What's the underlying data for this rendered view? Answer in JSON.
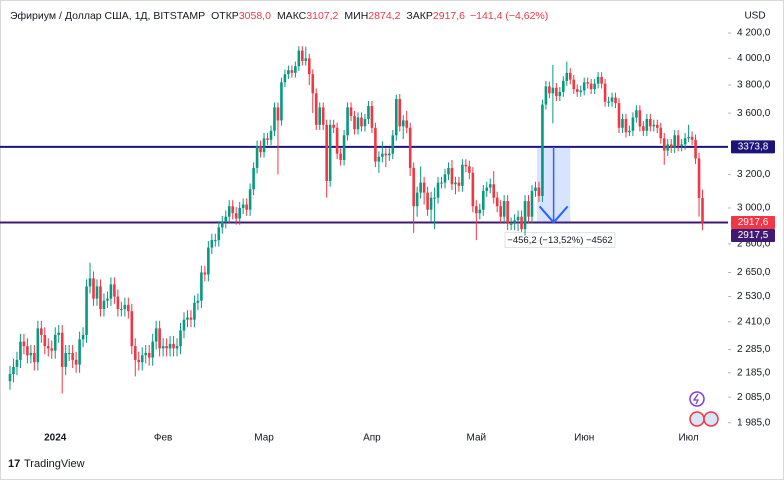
{
  "chart_data": {
    "type": "candlestick",
    "title": "Эфириум / Доллар США, 1Д, BITSTAMP",
    "header_fields": [
      {
        "label": "ОТКР",
        "value": "3058,0"
      },
      {
        "label": "МАКС",
        "value": "3107,2"
      },
      {
        "label": "МИН",
        "value": "2874,2"
      },
      {
        "label": "ЗАКР",
        "value": "2917,6"
      }
    ],
    "change": "−141,4 (−4,62%)",
    "currency": "USD",
    "brand": "TradingView",
    "categories": [
      null,
      null,
      null,
      null,
      null,
      null,
      null,
      null,
      null,
      null,
      null,
      null,
      null,
      "2024",
      null,
      null,
      null,
      null,
      null,
      null,
      null,
      null,
      null,
      null,
      null,
      null,
      null,
      null,
      null,
      null,
      null,
      null,
      null,
      null,
      null,
      null,
      null,
      null,
      null,
      null,
      null,
      null,
      null,
      null,
      "Фев",
      null,
      null,
      null,
      null,
      null,
      null,
      null,
      null,
      null,
      null,
      null,
      null,
      null,
      null,
      null,
      null,
      null,
      null,
      null,
      null,
      null,
      null,
      null,
      null,
      null,
      null,
      null,
      null,
      "Мар",
      null,
      null,
      null,
      null,
      null,
      null,
      null,
      null,
      null,
      null,
      null,
      null,
      null,
      null,
      null,
      null,
      null,
      null,
      null,
      null,
      null,
      null,
      null,
      null,
      null,
      null,
      null,
      null,
      null,
      null,
      "Апр",
      null,
      null,
      null,
      null,
      null,
      null,
      null,
      null,
      null,
      null,
      null,
      null,
      null,
      null,
      null,
      null,
      null,
      null,
      null,
      null,
      null,
      null,
      null,
      null,
      null,
      null,
      null,
      null,
      null,
      "Май",
      null,
      null,
      null,
      null,
      null,
      null,
      null,
      null,
      null,
      null,
      null,
      null,
      null,
      null,
      null,
      null,
      null,
      null,
      null,
      null,
      null,
      null,
      null,
      null,
      null,
      null,
      null,
      null,
      null,
      null,
      "Июн",
      null,
      null,
      null,
      null,
      null,
      null,
      null,
      null,
      null,
      null,
      null,
      null,
      null,
      null,
      null,
      null,
      null,
      null,
      null,
      null,
      null,
      null,
      null,
      null,
      null,
      null,
      null,
      null,
      null,
      "Июл",
      null,
      null,
      null,
      null
    ],
    "open": [
      2150,
      2180,
      2210,
      2240,
      2320,
      2300,
      2260,
      2270,
      2230,
      2380,
      2350,
      2300,
      2290,
      2280,
      2350,
      2360,
      2210,
      2270,
      2270,
      2240,
      2220,
      2330,
      2350,
      2580,
      2620,
      2520,
      2580,
      2470,
      2510,
      2520,
      2590,
      2530,
      2470,
      2470,
      2490,
      2460,
      2300,
      2240,
      2230,
      2260,
      2270,
      2250,
      2320,
      2380,
      2290,
      2300,
      2290,
      2310,
      2290,
      2300,
      2370,
      2420,
      2430,
      2420,
      2500,
      2510,
      2650,
      2640,
      2780,
      2820,
      2820,
      2890,
      2920,
      2950,
      3010,
      2970,
      2940,
      3000,
      3020,
      2990,
      3110,
      3240,
      3380,
      3340,
      3430,
      3420,
      3480,
      3640,
      3550,
      3820,
      3880,
      3910,
      3890,
      3940,
      4060,
      3980,
      4000,
      3880,
      3740,
      3520,
      3640,
      3520,
      3160,
      3520,
      3500,
      3330,
      3290,
      3450,
      3640,
      3580,
      3490,
      3570,
      3510,
      3560,
      3650,
      3500,
      3280,
      3310,
      3330,
      3320,
      3330,
      3450,
      3700,
      3510,
      3550,
      3500,
      3240,
      3010,
      3090,
      3150,
      3090,
      2990,
      3060,
      3060,
      3150,
      3150,
      3200,
      3240,
      3140,
      3150,
      3130,
      3260,
      3250,
      3210,
      3010,
      2970,
      2990,
      3100,
      3120,
      3140,
      3060,
      3010,
      2950,
      3040,
      2910,
      2910,
      2930,
      2950,
      2880,
      3040,
      2950,
      3100,
      3120,
      3070,
      3660,
      3790,
      3740,
      3780,
      3720,
      3750,
      3830,
      3890,
      3840,
      3770,
      3750,
      3760,
      3820,
      3810,
      3770,
      3810,
      3860,
      3810,
      3680,
      3680,
      3710,
      3670,
      3500,
      3560,
      3470,
      3480,
      3570,
      3620,
      3510,
      3480,
      3560,
      3510,
      3520,
      3500,
      3430,
      3350,
      3390,
      3370,
      3450,
      3380,
      3390,
      3430,
      3440,
      3420,
      3300,
      3058
    ],
    "high": [
      2215,
      2245,
      2275,
      2355,
      2355,
      2335,
      2305,
      2305,
      2415,
      2415,
      2385,
      2335,
      2325,
      2385,
      2395,
      2395,
      2305,
      2305,
      2305,
      2275,
      2365,
      2385,
      2615,
      2700,
      2655,
      2615,
      2615,
      2545,
      2555,
      2625,
      2625,
      2565,
      2505,
      2525,
      2525,
      2495,
      2335,
      2275,
      2295,
      2305,
      2305,
      2355,
      2415,
      2415,
      2335,
      2335,
      2345,
      2345,
      2335,
      2405,
      2455,
      2465,
      2465,
      2535,
      2545,
      2685,
      2685,
      2815,
      2855,
      2855,
      2925,
      2955,
      2985,
      3045,
      3045,
      3005,
      3035,
      3055,
      3055,
      3145,
      3275,
      3415,
      3415,
      3465,
      3465,
      3515,
      3675,
      3675,
      3855,
      3915,
      3945,
      3945,
      3975,
      4095,
      4095,
      4090,
      4035,
      3915,
      3775,
      3675,
      3675,
      3555,
      3555,
      3555,
      3535,
      3365,
      3485,
      3675,
      3675,
      3615,
      3605,
      3605,
      3595,
      3685,
      3685,
      3535,
      3345,
      3410,
      3365,
      3365,
      3485,
      3730,
      3735,
      3585,
      3615,
      3535,
      3275,
      3125,
      3250,
      3185,
      3125,
      3095,
      3120,
      3185,
      3185,
      3235,
      3275,
      3290,
      3185,
      3185,
      3295,
      3295,
      3285,
      3245,
      3045,
      3025,
      3135,
      3155,
      3175,
      3220,
      3095,
      3045,
      3075,
      3075,
      2945,
      2965,
      2985,
      2985,
      3075,
      3075,
      3135,
      3155,
      3155,
      3695,
      3830,
      3825,
      3950,
      3815,
      3785,
      3865,
      3975,
      3925,
      3875,
      3805,
      3795,
      3855,
      3855,
      3845,
      3845,
      3895,
      3895,
      3845,
      3715,
      3745,
      3745,
      3705,
      3595,
      3595,
      3515,
      3605,
      3655,
      3655,
      3545,
      3595,
      3595,
      3555,
      3555,
      3535,
      3465,
      3425,
      3425,
      3485,
      3485,
      3425,
      3465,
      3520,
      3475,
      3455,
      3335,
      3107.2
    ],
    "low": [
      2115,
      2145,
      2175,
      2205,
      2265,
      2225,
      2225,
      2195,
      2195,
      2315,
      2265,
      2255,
      2245,
      2245,
      2315,
      2100,
      2175,
      2235,
      2205,
      2185,
      2185,
      2295,
      2315,
      2545,
      2485,
      2485,
      2435,
      2435,
      2475,
      2485,
      2495,
      2435,
      2435,
      2435,
      2425,
      2265,
      2170,
      2195,
      2195,
      2225,
      2215,
      2215,
      2285,
      2255,
      2255,
      2255,
      2255,
      2255,
      2255,
      2265,
      2335,
      2385,
      2385,
      2385,
      2465,
      2475,
      2605,
      2605,
      2745,
      2785,
      2785,
      2855,
      2885,
      2915,
      2935,
      2905,
      2905,
      2965,
      2955,
      2955,
      3075,
      3205,
      3305,
      3305,
      3385,
      3385,
      3445,
      3200,
      3515,
      3785,
      3845,
      3855,
      3855,
      3905,
      3945,
      3945,
      3800,
      3600,
      3485,
      3485,
      3485,
      3060,
      3125,
      3465,
      3295,
      3255,
      3255,
      3415,
      3545,
      3455,
      3455,
      3475,
      3475,
      3525,
      3465,
      3245,
      3210,
      3275,
      3245,
      3285,
      3295,
      3415,
      3475,
      3425,
      3465,
      3190,
      2860,
      2950,
      3055,
      3020,
      2955,
      2920,
      2880,
      3025,
      3115,
      3115,
      3165,
      3105,
      3080,
      3095,
      3095,
      3215,
      3170,
      2975,
      2820,
      2935,
      2955,
      3065,
      3085,
      3025,
      2975,
      2915,
      2915,
      2875,
      2875,
      2875,
      2870,
      2865,
      2845,
      2915,
      2915,
      3065,
      3035,
      3035,
      3625,
      3705,
      3530,
      3685,
      3685,
      3715,
      3795,
      3805,
      3735,
      3715,
      3715,
      3725,
      3775,
      3735,
      3735,
      3775,
      3775,
      3645,
      3645,
      3645,
      3635,
      3465,
      3465,
      3435,
      3445,
      3445,
      3535,
      3475,
      3445,
      3445,
      3475,
      3475,
      3465,
      3395,
      3260,
      3315,
      3335,
      3335,
      3345,
      3345,
      3355,
      3405,
      3385,
      3265,
      2950,
      2874.2
    ],
    "close": [
      2180,
      2210,
      2240,
      2320,
      2300,
      2260,
      2270,
      2230,
      2380,
      2350,
      2300,
      2290,
      2280,
      2350,
      2360,
      2210,
      2270,
      2270,
      2240,
      2220,
      2330,
      2350,
      2580,
      2620,
      2520,
      2580,
      2470,
      2510,
      2520,
      2590,
      2530,
      2470,
      2470,
      2490,
      2460,
      2300,
      2240,
      2230,
      2260,
      2270,
      2250,
      2320,
      2380,
      2290,
      2300,
      2290,
      2310,
      2290,
      2300,
      2370,
      2420,
      2430,
      2420,
      2500,
      2510,
      2650,
      2640,
      2780,
      2820,
      2820,
      2890,
      2920,
      2950,
      3010,
      2970,
      2940,
      3000,
      3020,
      2990,
      3110,
      3240,
      3380,
      3340,
      3430,
      3420,
      3480,
      3640,
      3550,
      3820,
      3880,
      3910,
      3890,
      3940,
      4060,
      3980,
      4000,
      3880,
      3740,
      3520,
      3640,
      3520,
      3160,
      3520,
      3500,
      3330,
      3290,
      3450,
      3640,
      3580,
      3490,
      3570,
      3510,
      3560,
      3650,
      3500,
      3280,
      3310,
      3330,
      3320,
      3330,
      3450,
      3700,
      3510,
      3550,
      3500,
      3240,
      3010,
      3090,
      3150,
      3090,
      2990,
      3060,
      3060,
      3150,
      3150,
      3200,
      3240,
      3140,
      3150,
      3130,
      3260,
      3250,
      3210,
      3010,
      2970,
      2990,
      3100,
      3120,
      3140,
      3060,
      3010,
      2950,
      3040,
      2910,
      2910,
      2930,
      2950,
      2880,
      3040,
      2950,
      3100,
      3120,
      3070,
      3660,
      3790,
      3740,
      3780,
      3720,
      3750,
      3830,
      3890,
      3840,
      3770,
      3750,
      3760,
      3820,
      3810,
      3770,
      3810,
      3860,
      3810,
      3680,
      3680,
      3710,
      3670,
      3500,
      3560,
      3470,
      3480,
      3570,
      3620,
      3510,
      3480,
      3560,
      3510,
      3520,
      3500,
      3430,
      3350,
      3390,
      3370,
      3450,
      3380,
      3390,
      3430,
      3440,
      3420,
      3300,
      3058,
      2917.6
    ],
    "up_color": "#089981",
    "down_color": "#f23645",
    "log_scale": true,
    "grid": false,
    "ylim": [
      1965,
      4475
    ],
    "yticks": [
      {
        "value": 4200,
        "label": "4 200,0"
      },
      {
        "value": 4000,
        "label": "4 000,0"
      },
      {
        "value": 3800,
        "label": "3 800,0"
      },
      {
        "value": 3600,
        "label": "3 600,0"
      },
      {
        "value": 3200,
        "label": "3 200,0"
      },
      {
        "value": 3000,
        "label": "3 000,0"
      },
      {
        "value": 2800,
        "label": "2 800,0"
      },
      {
        "value": 2650,
        "label": "2 650,0"
      },
      {
        "value": 2530,
        "label": "2 530,0"
      },
      {
        "value": 2410,
        "label": "2 410,0"
      },
      {
        "value": 2285,
        "label": "2 285,0"
      },
      {
        "value": 2185,
        "label": "2 185,0"
      },
      {
        "value": 2085,
        "label": "2 085,0"
      },
      {
        "value": 1985,
        "label": "1 985,0"
      }
    ],
    "hlines": [
      {
        "value": 3373.8,
        "label": "3373,8",
        "color": "#1c1478"
      },
      {
        "value": 2917.5,
        "label": "2917,5",
        "color": "#3f1a70"
      }
    ],
    "last_price": {
      "value": 2917.6,
      "label": "2917,6"
    },
    "measure_label": "−456,2 (−13,52%) −4562"
  }
}
